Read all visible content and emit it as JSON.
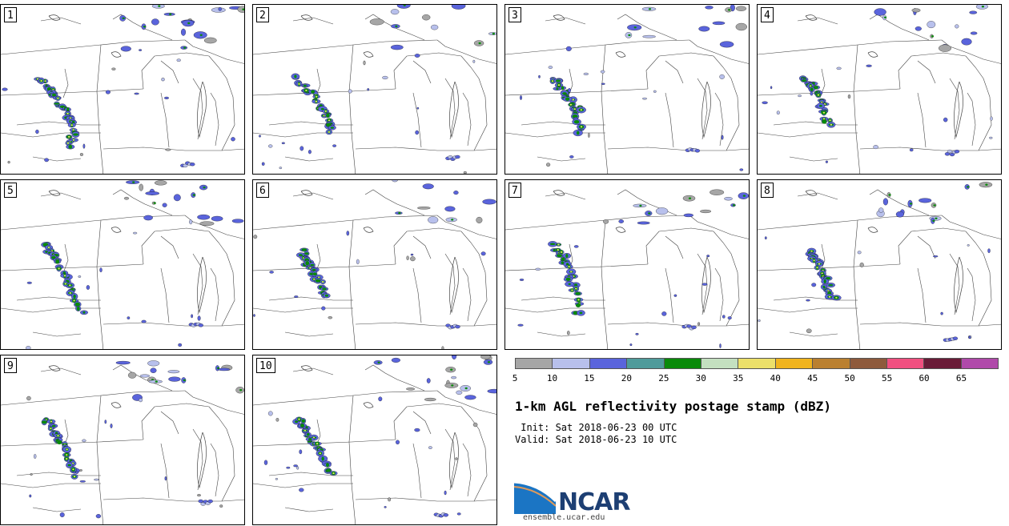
{
  "panels": [
    {
      "label": "1"
    },
    {
      "label": "2"
    },
    {
      "label": "3"
    },
    {
      "label": "4"
    },
    {
      "label": "5"
    },
    {
      "label": "6"
    },
    {
      "label": "7"
    },
    {
      "label": "8"
    },
    {
      "label": "9"
    },
    {
      "label": "10"
    }
  ],
  "colorbar": {
    "colors": [
      "#a6a6a6",
      "#b8c0ec",
      "#5a64dc",
      "#4f9b9b",
      "#0a8a0a",
      "#c4e0c0",
      "#ece06a",
      "#f0b41e",
      "#ba8030",
      "#8e5a3c",
      "#f05080",
      "#6a1c38",
      "#b04aaa"
    ],
    "ticks": [
      "5",
      "10",
      "15",
      "20",
      "25",
      "30",
      "35",
      "40",
      "45",
      "50",
      "55",
      "60",
      "65"
    ]
  },
  "title": "1-km AGL reflectivity postage stamp (dBZ)",
  "init": " Init: Sat 2018-06-23 00 UTC",
  "valid": "Valid: Sat 2018-06-23 10 UTC",
  "logo": {
    "text": "NCAR",
    "site": "ensemble.ucar.edu"
  }
}
